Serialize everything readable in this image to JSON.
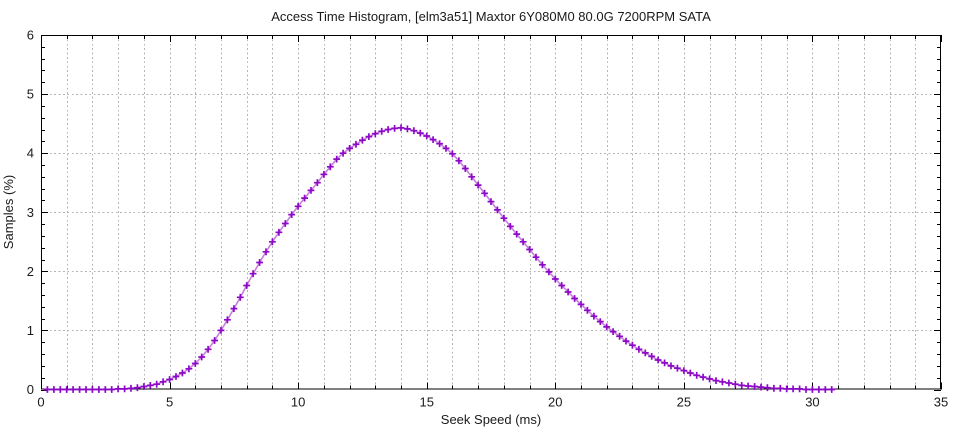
{
  "page": {
    "background": "#ffffff",
    "text_color": "#1a1a1a",
    "grid_color": "#b3b3b3",
    "axis_color": "#000000"
  },
  "chart_data": {
    "type": "line",
    "title": "Access Time Histogram, [elm3a51] Maxtor 6Y080M0 80.0G 7200RPM SATA",
    "xlabel": "Seek Speed (ms)",
    "ylabel": "Samples (%)",
    "xlim": [
      0,
      35
    ],
    "ylim": [
      0,
      6
    ],
    "x_major_ticks": [
      0,
      5,
      10,
      15,
      20,
      25,
      30,
      35
    ],
    "x_minor_step": 1,
    "y_major_ticks": [
      0,
      1,
      2,
      3,
      4,
      5,
      6
    ],
    "y_minor_step": 0.2,
    "grid": {
      "style": "dotted",
      "vertical_every_ms": 1,
      "horizontal_at": [
        1,
        2,
        3,
        4,
        5
      ]
    },
    "legend": "none",
    "series": [
      {
        "name": "access-time-samples",
        "marker": "plus",
        "marker_color": "#8d09c8",
        "line_color": "#c77fd9",
        "x_start": 0.25,
        "x_step": 0.25,
        "x_end": 30.75,
        "peak": {
          "x": 13.9,
          "y": 4.43
        },
        "values": [
          0.0,
          0.0,
          0.0,
          0.0,
          0.0,
          0.0,
          0.0,
          0.0,
          0.0,
          0.0,
          0.0,
          0.01,
          0.01,
          0.02,
          0.03,
          0.05,
          0.07,
          0.09,
          0.13,
          0.17,
          0.22,
          0.28,
          0.35,
          0.44,
          0.55,
          0.68,
          0.83,
          1.0,
          1.18,
          1.37,
          1.56,
          1.76,
          1.96,
          2.15,
          2.33,
          2.5,
          2.66,
          2.81,
          2.96,
          3.1,
          3.24,
          3.37,
          3.5,
          3.64,
          3.77,
          3.9,
          4.0,
          4.08,
          4.15,
          4.22,
          4.28,
          4.33,
          4.37,
          4.4,
          4.42,
          4.43,
          4.41,
          4.38,
          4.34,
          4.29,
          4.23,
          4.16,
          4.08,
          3.99,
          3.87,
          3.74,
          3.6,
          3.46,
          3.32,
          3.18,
          3.04,
          2.9,
          2.76,
          2.63,
          2.5,
          2.37,
          2.24,
          2.11,
          1.99,
          1.87,
          1.76,
          1.65,
          1.54,
          1.44,
          1.34,
          1.24,
          1.15,
          1.06,
          0.98,
          0.9,
          0.82,
          0.75,
          0.68,
          0.62,
          0.56,
          0.5,
          0.45,
          0.4,
          0.36,
          0.32,
          0.28,
          0.24,
          0.21,
          0.18,
          0.15,
          0.13,
          0.11,
          0.09,
          0.07,
          0.06,
          0.05,
          0.04,
          0.03,
          0.02,
          0.02,
          0.01,
          0.01,
          0.01,
          0.0,
          0.0,
          0.0,
          0.0,
          0.0
        ]
      }
    ]
  }
}
